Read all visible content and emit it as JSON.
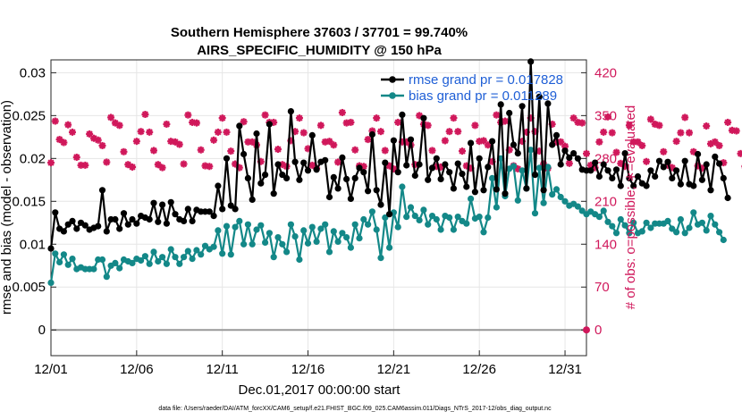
{
  "chart_data": {
    "type": "line",
    "title_line1": "Southern Hemisphere 37603 / 37701 = 99.740%",
    "title_line2": "AIRS_SPECIFIC_HUMIDITY @ 150 hPa",
    "xlabel": "Dec.01,2017 00:00:00 start",
    "ylabel": "rmse and bias (model - observation)",
    "ylabel_right": "# of obs: o=possible; ∗=evaluated",
    "footnote": "data file: /Users/raeder/DAI/ATM_forcXX/CAM6_setup/f.e21.FHIST_BGC.f09_025.CAM6assim.011/Diags_NTrS_2017-12/obs_diag_output.nc",
    "x_ticks": [
      {
        "day": 1,
        "label": "12/01"
      },
      {
        "day": 6,
        "label": "12/06"
      },
      {
        "day": 11,
        "label": "12/11"
      },
      {
        "day": 16,
        "label": "12/16"
      },
      {
        "day": 21,
        "label": "12/21"
      },
      {
        "day": 26,
        "label": "12/26"
      },
      {
        "day": 31,
        "label": "12/31"
      }
    ],
    "x_range": [
      1,
      32.25
    ],
    "y_range": [
      -0.003,
      0.0315
    ],
    "y_ticks": [
      "0",
      "0.005",
      "0.01",
      "0.015",
      "0.02",
      "0.025",
      "0.03"
    ],
    "y2_range": [
      -42,
      441
    ],
    "y2_ticks": [
      "0",
      "70",
      "140",
      "210",
      "280",
      "350",
      "420"
    ],
    "x_start": 1.0,
    "x_step": 0.25,
    "series": [
      {
        "name": "rmse grand pr = 0.017828",
        "color": "#000000",
        "values": [
          0.0095,
          0.0137,
          0.0118,
          0.0115,
          0.0123,
          0.0127,
          0.0118,
          0.0125,
          0.0122,
          0.0117,
          0.0119,
          0.0121,
          0.0163,
          0.0115,
          0.0129,
          0.0129,
          0.0118,
          0.0136,
          0.0123,
          0.0129,
          0.0124,
          0.0133,
          0.0131,
          0.0129,
          0.0148,
          0.0126,
          0.0146,
          0.0124,
          0.0149,
          0.0135,
          0.0129,
          0.0127,
          0.0141,
          0.0127,
          0.014,
          0.0138,
          0.0138,
          0.0138,
          0.0133,
          0.0168,
          0.0141,
          0.02,
          0.0145,
          0.0141,
          0.0238,
          0.0205,
          0.0177,
          0.0152,
          0.0229,
          0.0171,
          0.0181,
          0.024,
          0.0159,
          0.0193,
          0.0181,
          0.0177,
          0.0255,
          0.0196,
          0.0175,
          0.0195,
          0.0186,
          0.0227,
          0.0187,
          0.0196,
          0.0198,
          0.0155,
          0.0178,
          0.0165,
          0.0201,
          0.0176,
          0.0153,
          0.0177,
          0.0189,
          0.0184,
          0.0162,
          0.0228,
          0.0163,
          0.0146,
          0.0195,
          0.0135,
          0.0221,
          0.0184,
          0.0251,
          0.0192,
          0.0222,
          0.018,
          0.0193,
          0.0247,
          0.0175,
          0.0189,
          0.02,
          0.0176,
          0.0193,
          0.0184,
          0.0165,
          0.0194,
          0.0182,
          0.0167,
          0.0218,
          0.0161,
          0.02,
          0.0163,
          0.019,
          0.022,
          0.0164,
          0.0263,
          0.0159,
          0.0253,
          0.0216,
          0.0206,
          0.0261,
          0.0165,
          0.0313,
          0.0181,
          0.0272,
          0.0163,
          0.0264,
          0.0216,
          0.0227,
          0.0193,
          0.0209,
          0.0201,
          0.0206,
          0.02,
          0.0187,
          0.0186,
          0.0186,
          0.0195,
          0.0179,
          0.0193,
          0.0186,
          0.0177,
          0.0187,
          0.0168,
          0.0206,
          0.0177,
          0.0168,
          0.0179,
          0.0171,
          0.0168,
          0.0186,
          0.0179,
          0.0197,
          0.019,
          0.0196,
          0.0177,
          0.0186,
          0.017,
          0.0197,
          0.017,
          0.0168,
          0.0205,
          0.0175,
          0.0193,
          0.0163,
          0.0202,
          0.0194,
          0.0177,
          0.0154
        ]
      },
      {
        "name": "bias grand pr = 0.011289",
        "color": "#138888",
        "values": [
          0.0055,
          0.0089,
          0.0079,
          0.0088,
          0.0076,
          0.0083,
          0.0071,
          0.0073,
          0.0071,
          0.0071,
          0.0071,
          0.0082,
          0.0082,
          0.0062,
          0.0075,
          0.0078,
          0.0072,
          0.0082,
          0.008,
          0.0078,
          0.0083,
          0.0081,
          0.0086,
          0.0077,
          0.0091,
          0.008,
          0.0085,
          0.0077,
          0.0094,
          0.0085,
          0.0077,
          0.0085,
          0.0092,
          0.0083,
          0.0093,
          0.0088,
          0.0098,
          0.0094,
          0.0097,
          0.0116,
          0.0089,
          0.0121,
          0.0088,
          0.012,
          0.0127,
          0.01,
          0.0123,
          0.01,
          0.0117,
          0.0122,
          0.0102,
          0.0113,
          0.0085,
          0.0108,
          0.01,
          0.0091,
          0.0123,
          0.0109,
          0.0082,
          0.0116,
          0.0101,
          0.012,
          0.0103,
          0.0118,
          0.0123,
          0.0091,
          0.0115,
          0.0103,
          0.0113,
          0.0108,
          0.0096,
          0.0123,
          0.0107,
          0.0129,
          0.0123,
          0.0138,
          0.0117,
          0.0084,
          0.0131,
          0.0096,
          0.0137,
          0.012,
          0.0167,
          0.0132,
          0.0143,
          0.0133,
          0.0128,
          0.014,
          0.0123,
          0.0133,
          0.0129,
          0.0117,
          0.0133,
          0.0131,
          0.0117,
          0.0132,
          0.0127,
          0.0124,
          0.0153,
          0.013,
          0.0132,
          0.0114,
          0.0131,
          0.0177,
          0.0143,
          0.02,
          0.0156,
          0.0188,
          0.0191,
          0.0151,
          0.0186,
          0.0165,
          0.021,
          0.0136,
          0.0189,
          0.0148,
          0.019,
          0.0158,
          0.0164,
          0.0155,
          0.015,
          0.0145,
          0.0147,
          0.0144,
          0.0139,
          0.0135,
          0.0138,
          0.0135,
          0.0132,
          0.0139,
          0.0126,
          0.0121,
          0.0113,
          0.0129,
          0.0122,
          0.0113,
          0.0125,
          0.0113,
          0.0115,
          0.0125,
          0.0119,
          0.0124,
          0.0124,
          0.0124,
          0.0127,
          0.0118,
          0.0114,
          0.0129,
          0.0113,
          0.0119,
          0.0137,
          0.0123,
          0.0125,
          0.0116,
          0.0133,
          0.0123,
          0.0114,
          0.0105
        ]
      }
    ],
    "obs_series": {
      "name": "# of obs evaluated",
      "color": "#d0185b",
      "start": 1.0,
      "step": 0.25,
      "values": [
        273,
        341,
        311,
        306,
        335,
        323,
        282,
        269,
        269,
        320,
        313,
        310,
        301,
        274,
        347,
        338,
        334,
        291,
        270,
        266,
        308,
        324,
        352,
        323,
        293,
        270,
        265,
        336,
        308,
        307,
        303,
        271,
        351,
        339,
        338,
        294,
        268,
        267,
        310,
        323,
        346,
        323,
        292,
        271,
        265,
        340,
        307,
        307,
        302,
        275,
        351,
        339,
        339,
        295,
        270,
        267,
        309,
        324,
        346,
        322,
        296,
        269,
        264,
        334,
        307,
        308,
        302,
        274,
        355,
        338,
        339,
        294,
        268,
        267,
        311,
        325,
        346,
        324,
        293,
        268,
        263,
        339,
        307,
        307,
        302,
        270,
        350,
        336,
        334,
        293,
        267,
        266,
        309,
        324,
        346,
        324,
        292,
        268,
        264,
        334,
        308,
        309,
        302,
        275,
        351,
        339,
        341,
        294,
        268,
        263,
        308,
        323,
        346,
        324,
        292,
        271,
        264,
        336,
        307,
        307,
        300,
        272,
        346,
        339,
        338,
        288,
        269,
        265,
        307,
        323,
        348,
        322,
        290,
        272,
        267,
        334,
        307,
        307,
        301,
        275,
        344,
        336,
        334,
        291,
        269,
        265,
        308,
        322,
        347,
        322,
        291,
        268,
        264,
        333,
        304,
        307,
        301,
        273,
        339,
        326,
        325,
        288,
        267
      ]
    },
    "last_obs_value": 0
  }
}
